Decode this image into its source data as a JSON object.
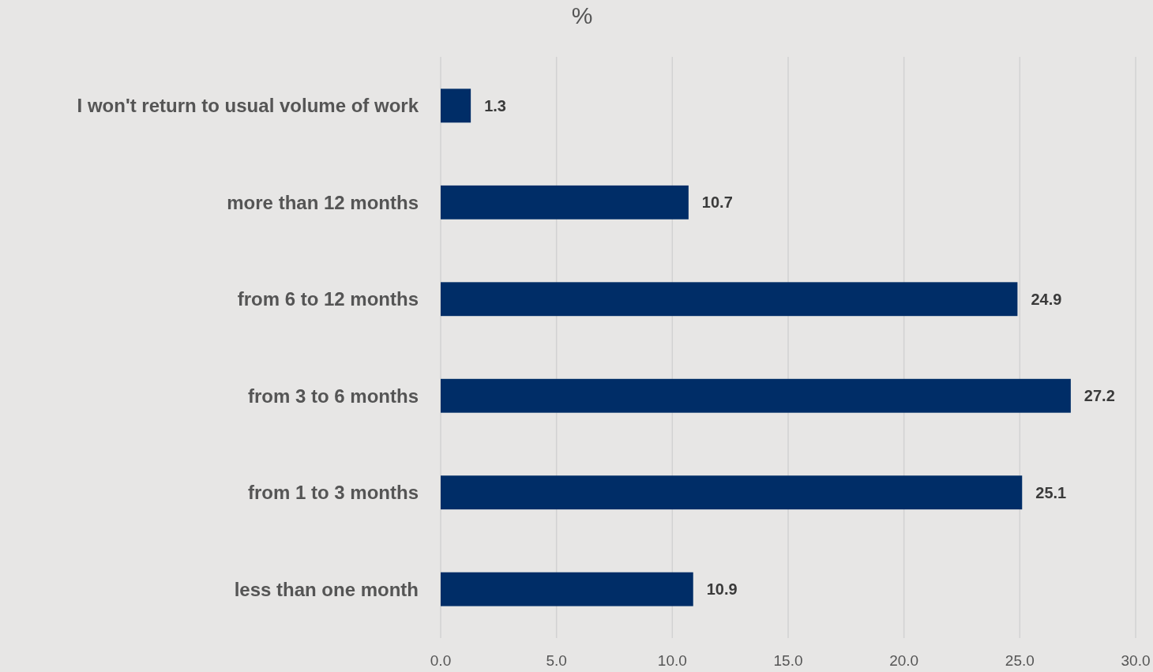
{
  "chart_data": {
    "type": "bar",
    "orientation": "horizontal",
    "title": "%",
    "categories": [
      "I won't return to usual volume of work",
      "more than 12 months",
      "from 6 to 12 months",
      "from 3 to 6 months",
      "from 1 to 3 months",
      "less than one month"
    ],
    "values": [
      1.3,
      10.7,
      24.9,
      27.2,
      25.1,
      10.9
    ],
    "color": "#002d67",
    "xlim": [
      0,
      30
    ],
    "xticks": [
      {
        "value": 0,
        "label": "0.0"
      },
      {
        "value": 5,
        "label": "5.0"
      },
      {
        "value": 10,
        "label": "10.0"
      },
      {
        "value": 15,
        "label": "15.0"
      },
      {
        "value": 20,
        "label": "20.0"
      },
      {
        "value": 25,
        "label": "25.0"
      },
      {
        "value": 30,
        "label": "30.0"
      }
    ],
    "grid": "x",
    "data_labels": true
  }
}
